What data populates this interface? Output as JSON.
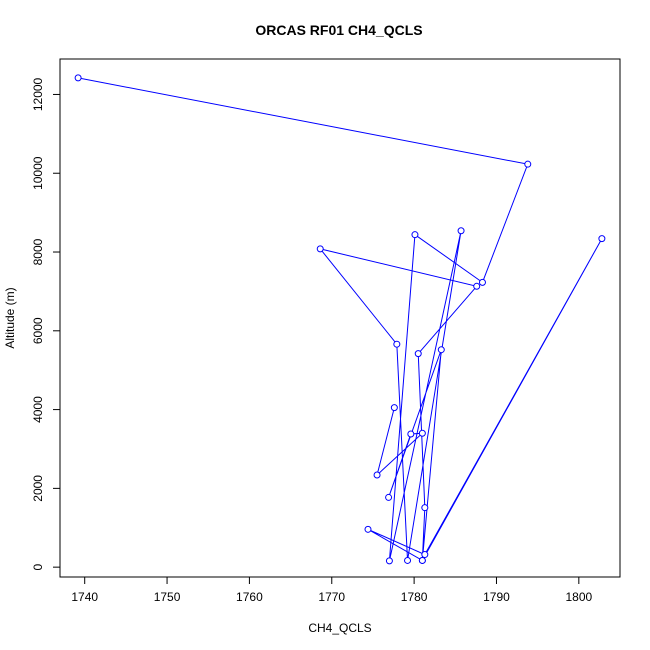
{
  "chart_data": {
    "type": "line",
    "title": "ORCAS RF01 CH4_QCLS",
    "xlabel": "CH4_QCLS",
    "ylabel": "Altitude (m)",
    "xlim": [
      1737,
      1805
    ],
    "ylim": [
      -250,
      12900
    ],
    "xticks": [
      1740,
      1750,
      1760,
      1770,
      1780,
      1790,
      1800
    ],
    "yticks": [
      0,
      2000,
      4000,
      6000,
      8000,
      10000,
      12000
    ],
    "series_color": "#0000ff",
    "markers": "open-circle",
    "points": [
      {
        "x": 1739.2,
        "y": 12420
      },
      {
        "x": 1793.8,
        "y": 10230
      },
      {
        "x": 1788.3,
        "y": 7230
      },
      {
        "x": 1780.1,
        "y": 8440
      },
      {
        "x": 1777.0,
        "y": 160
      },
      {
        "x": 1785.7,
        "y": 8540
      },
      {
        "x": 1779.2,
        "y": 170
      },
      {
        "x": 1777.9,
        "y": 5660
      },
      {
        "x": 1768.6,
        "y": 8080
      },
      {
        "x": 1787.6,
        "y": 7130
      },
      {
        "x": 1780.5,
        "y": 5420
      },
      {
        "x": 1781.3,
        "y": 1510
      },
      {
        "x": 1781.0,
        "y": 170
      },
      {
        "x": 1774.4,
        "y": 960
      },
      {
        "x": 1781.3,
        "y": 320
      },
      {
        "x": 1802.8,
        "y": 8340
      },
      {
        "x": 1781.0,
        "y": 170
      },
      {
        "x": 1783.3,
        "y": 5520
      },
      {
        "x": 1776.9,
        "y": 1770
      },
      {
        "x": 1779.6,
        "y": 3380
      },
      {
        "x": 1781.0,
        "y": 3400
      },
      {
        "x": 1775.5,
        "y": 2340
      },
      {
        "x": 1777.6,
        "y": 4050
      }
    ]
  }
}
